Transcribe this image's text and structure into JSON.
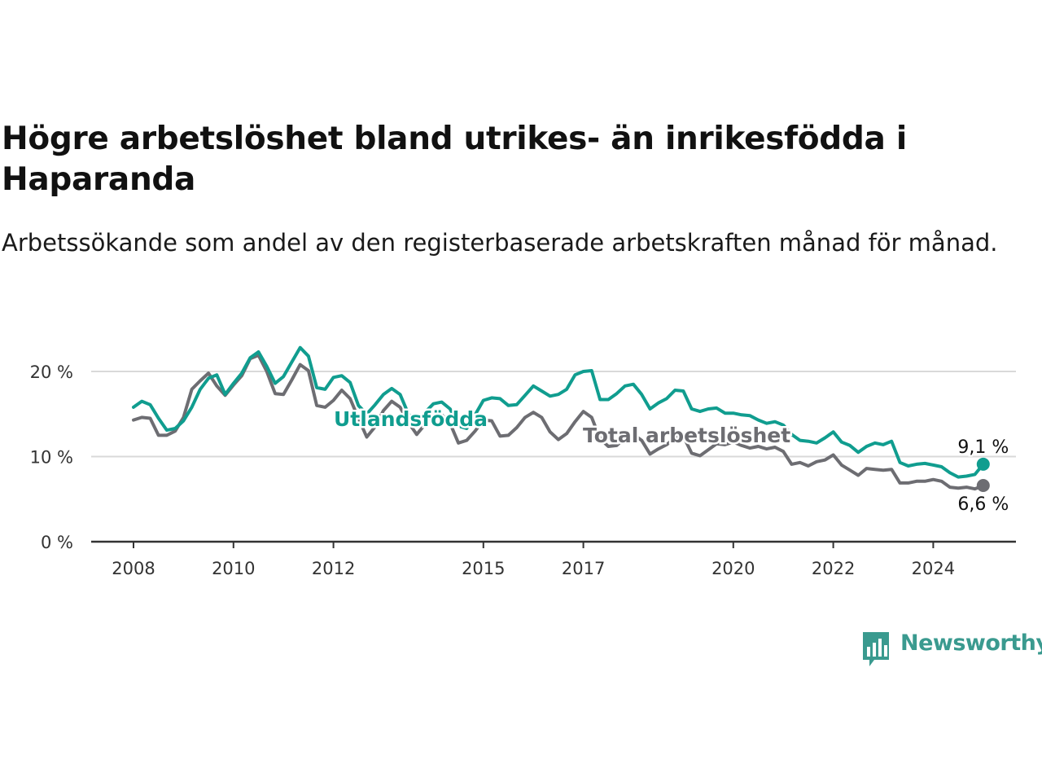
{
  "title": "Högre arbetslöshet bland utrikes- än inrikesfödda i Haparanda",
  "subtitle": "Arbetssökande som andel av den registerbaserade arbetskraften månad för månad.",
  "brand": {
    "name": "Newsworthy",
    "color": "#3a9a8f"
  },
  "chart_data": {
    "type": "line",
    "x_ticks": [
      "2008",
      "2010",
      "2012",
      "2015",
      "2017",
      "2020",
      "2022",
      "2024"
    ],
    "y_ticks": [
      "0 %",
      "10 %",
      "20 %"
    ],
    "ylim": [
      0,
      25
    ],
    "grid": true,
    "series": [
      {
        "name": "Utlandsfödda",
        "color": "#109d8f",
        "end_label": "9,1 %",
        "points": [
          [
            "2008-01",
            15.8
          ],
          [
            "2008-03",
            16.5
          ],
          [
            "2008-05",
            16.1
          ],
          [
            "2008-07",
            14.5
          ],
          [
            "2008-09",
            13.1
          ],
          [
            "2008-11",
            13.3
          ],
          [
            "2009-01",
            14.2
          ],
          [
            "2009-03",
            15.8
          ],
          [
            "2009-05",
            17.9
          ],
          [
            "2009-07",
            19.2
          ],
          [
            "2009-09",
            19.6
          ],
          [
            "2009-11",
            17.3
          ],
          [
            "2010-01",
            18.6
          ],
          [
            "2010-03",
            19.8
          ],
          [
            "2010-05",
            21.6
          ],
          [
            "2010-07",
            22.3
          ],
          [
            "2010-09",
            20.6
          ],
          [
            "2010-11",
            18.6
          ],
          [
            "2011-01",
            19.4
          ],
          [
            "2011-03",
            21.1
          ],
          [
            "2011-05",
            22.8
          ],
          [
            "2011-07",
            21.8
          ],
          [
            "2011-09",
            18.1
          ],
          [
            "2011-11",
            17.9
          ],
          [
            "2012-01",
            19.3
          ],
          [
            "2012-03",
            19.5
          ],
          [
            "2012-05",
            18.7
          ],
          [
            "2012-07",
            16.0
          ],
          [
            "2012-09",
            15.0
          ],
          [
            "2012-11",
            16.1
          ],
          [
            "2013-01",
            17.3
          ],
          [
            "2013-03",
            18.0
          ],
          [
            "2013-05",
            17.3
          ],
          [
            "2013-07",
            15.0
          ],
          [
            "2013-09",
            14.0
          ],
          [
            "2013-11",
            15.2
          ],
          [
            "2014-01",
            16.2
          ],
          [
            "2014-03",
            16.4
          ],
          [
            "2014-05",
            15.6
          ],
          [
            "2014-07",
            13.6
          ],
          [
            "2014-09",
            13.3
          ],
          [
            "2014-11",
            14.9
          ],
          [
            "2015-01",
            16.6
          ],
          [
            "2015-03",
            16.9
          ],
          [
            "2015-05",
            16.8
          ],
          [
            "2015-07",
            16.0
          ],
          [
            "2015-09",
            16.1
          ],
          [
            "2015-11",
            17.2
          ],
          [
            "2016-01",
            18.3
          ],
          [
            "2016-03",
            17.7
          ],
          [
            "2016-05",
            17.1
          ],
          [
            "2016-07",
            17.3
          ],
          [
            "2016-09",
            17.9
          ],
          [
            "2016-11",
            19.6
          ],
          [
            "2017-01",
            20.0
          ],
          [
            "2017-03",
            20.1
          ],
          [
            "2017-05",
            16.7
          ],
          [
            "2017-07",
            16.7
          ],
          [
            "2017-09",
            17.4
          ],
          [
            "2017-11",
            18.3
          ],
          [
            "2018-01",
            18.5
          ],
          [
            "2018-03",
            17.3
          ],
          [
            "2018-05",
            15.6
          ],
          [
            "2018-07",
            16.3
          ],
          [
            "2018-09",
            16.8
          ],
          [
            "2018-11",
            17.8
          ],
          [
            "2019-01",
            17.7
          ],
          [
            "2019-03",
            15.6
          ],
          [
            "2019-05",
            15.3
          ],
          [
            "2019-07",
            15.6
          ],
          [
            "2019-09",
            15.7
          ],
          [
            "2019-11",
            15.1
          ],
          [
            "2020-01",
            15.1
          ],
          [
            "2020-03",
            14.9
          ],
          [
            "2020-05",
            14.8
          ],
          [
            "2020-07",
            14.3
          ],
          [
            "2020-09",
            13.9
          ],
          [
            "2020-11",
            14.1
          ],
          [
            "2021-01",
            13.7
          ],
          [
            "2021-03",
            12.6
          ],
          [
            "2021-05",
            11.9
          ],
          [
            "2021-07",
            11.8
          ],
          [
            "2021-09",
            11.6
          ],
          [
            "2021-11",
            12.2
          ],
          [
            "2022-01",
            12.9
          ],
          [
            "2022-03",
            11.7
          ],
          [
            "2022-05",
            11.3
          ],
          [
            "2022-07",
            10.5
          ],
          [
            "2022-09",
            11.2
          ],
          [
            "2022-11",
            11.6
          ],
          [
            "2023-01",
            11.4
          ],
          [
            "2023-03",
            11.8
          ],
          [
            "2023-05",
            9.3
          ],
          [
            "2023-07",
            8.9
          ],
          [
            "2023-09",
            9.1
          ],
          [
            "2023-11",
            9.2
          ],
          [
            "2024-01",
            9.0
          ],
          [
            "2024-03",
            8.8
          ],
          [
            "2024-05",
            8.1
          ],
          [
            "2024-07",
            7.6
          ],
          [
            "2024-09",
            7.7
          ],
          [
            "2024-11",
            7.9
          ],
          [
            "2025-01",
            9.1
          ]
        ]
      },
      {
        "name": "Total arbetslöshet",
        "color": "#6d6d72",
        "end_label": "6,6 %",
        "points": [
          [
            "2008-01",
            14.3
          ],
          [
            "2008-03",
            14.6
          ],
          [
            "2008-05",
            14.5
          ],
          [
            "2008-07",
            12.5
          ],
          [
            "2008-09",
            12.5
          ],
          [
            "2008-11",
            13.0
          ],
          [
            "2009-01",
            14.6
          ],
          [
            "2009-03",
            17.9
          ],
          [
            "2009-05",
            18.9
          ],
          [
            "2009-07",
            19.8
          ],
          [
            "2009-09",
            18.3
          ],
          [
            "2009-11",
            17.2
          ],
          [
            "2010-01",
            18.4
          ],
          [
            "2010-03",
            19.5
          ],
          [
            "2010-05",
            21.5
          ],
          [
            "2010-07",
            21.9
          ],
          [
            "2010-09",
            20.0
          ],
          [
            "2010-11",
            17.4
          ],
          [
            "2011-01",
            17.3
          ],
          [
            "2011-03",
            19.0
          ],
          [
            "2011-05",
            20.8
          ],
          [
            "2011-07",
            20.1
          ],
          [
            "2011-09",
            16.0
          ],
          [
            "2011-11",
            15.8
          ],
          [
            "2012-01",
            16.6
          ],
          [
            "2012-03",
            17.8
          ],
          [
            "2012-05",
            16.8
          ],
          [
            "2012-07",
            14.5
          ],
          [
            "2012-09",
            12.3
          ],
          [
            "2012-11",
            13.5
          ],
          [
            "2013-01",
            15.4
          ],
          [
            "2013-03",
            16.5
          ],
          [
            "2013-05",
            15.8
          ],
          [
            "2013-07",
            14.0
          ],
          [
            "2013-09",
            12.6
          ],
          [
            "2013-11",
            13.8
          ],
          [
            "2014-01",
            15.2
          ],
          [
            "2014-03",
            14.9
          ],
          [
            "2014-05",
            13.9
          ],
          [
            "2014-07",
            11.6
          ],
          [
            "2014-09",
            11.9
          ],
          [
            "2014-11",
            13.0
          ],
          [
            "2015-01",
            14.3
          ],
          [
            "2015-03",
            14.2
          ],
          [
            "2015-05",
            12.4
          ],
          [
            "2015-07",
            12.5
          ],
          [
            "2015-09",
            13.4
          ],
          [
            "2015-11",
            14.6
          ],
          [
            "2016-01",
            15.2
          ],
          [
            "2016-03",
            14.6
          ],
          [
            "2016-05",
            12.9
          ],
          [
            "2016-07",
            12.0
          ],
          [
            "2016-09",
            12.7
          ],
          [
            "2016-11",
            14.1
          ],
          [
            "2017-01",
            15.3
          ],
          [
            "2017-03",
            14.6
          ],
          [
            "2017-05",
            12.1
          ],
          [
            "2017-07",
            11.2
          ],
          [
            "2017-09",
            11.3
          ],
          [
            "2017-11",
            12.2
          ],
          [
            "2018-01",
            12.6
          ],
          [
            "2018-03",
            11.9
          ],
          [
            "2018-05",
            10.3
          ],
          [
            "2018-07",
            10.9
          ],
          [
            "2018-09",
            11.4
          ],
          [
            "2018-11",
            12.2
          ],
          [
            "2019-01",
            12.4
          ],
          [
            "2019-03",
            10.4
          ],
          [
            "2019-05",
            10.1
          ],
          [
            "2019-07",
            10.8
          ],
          [
            "2019-09",
            11.5
          ],
          [
            "2019-11",
            11.4
          ],
          [
            "2020-01",
            11.7
          ],
          [
            "2020-03",
            11.3
          ],
          [
            "2020-05",
            11.0
          ],
          [
            "2020-07",
            11.2
          ],
          [
            "2020-09",
            10.9
          ],
          [
            "2020-11",
            11.1
          ],
          [
            "2021-01",
            10.6
          ],
          [
            "2021-03",
            9.1
          ],
          [
            "2021-05",
            9.3
          ],
          [
            "2021-07",
            8.9
          ],
          [
            "2021-09",
            9.4
          ],
          [
            "2021-11",
            9.6
          ],
          [
            "2022-01",
            10.2
          ],
          [
            "2022-03",
            9.0
          ],
          [
            "2022-05",
            8.4
          ],
          [
            "2022-07",
            7.8
          ],
          [
            "2022-09",
            8.6
          ],
          [
            "2022-11",
            8.5
          ],
          [
            "2023-01",
            8.4
          ],
          [
            "2023-03",
            8.5
          ],
          [
            "2023-05",
            6.9
          ],
          [
            "2023-07",
            6.9
          ],
          [
            "2023-09",
            7.1
          ],
          [
            "2023-11",
            7.1
          ],
          [
            "2024-01",
            7.3
          ],
          [
            "2024-03",
            7.1
          ],
          [
            "2024-05",
            6.4
          ],
          [
            "2024-07",
            6.3
          ],
          [
            "2024-09",
            6.4
          ],
          [
            "2024-11",
            6.2
          ],
          [
            "2025-01",
            6.6
          ]
        ]
      }
    ]
  }
}
